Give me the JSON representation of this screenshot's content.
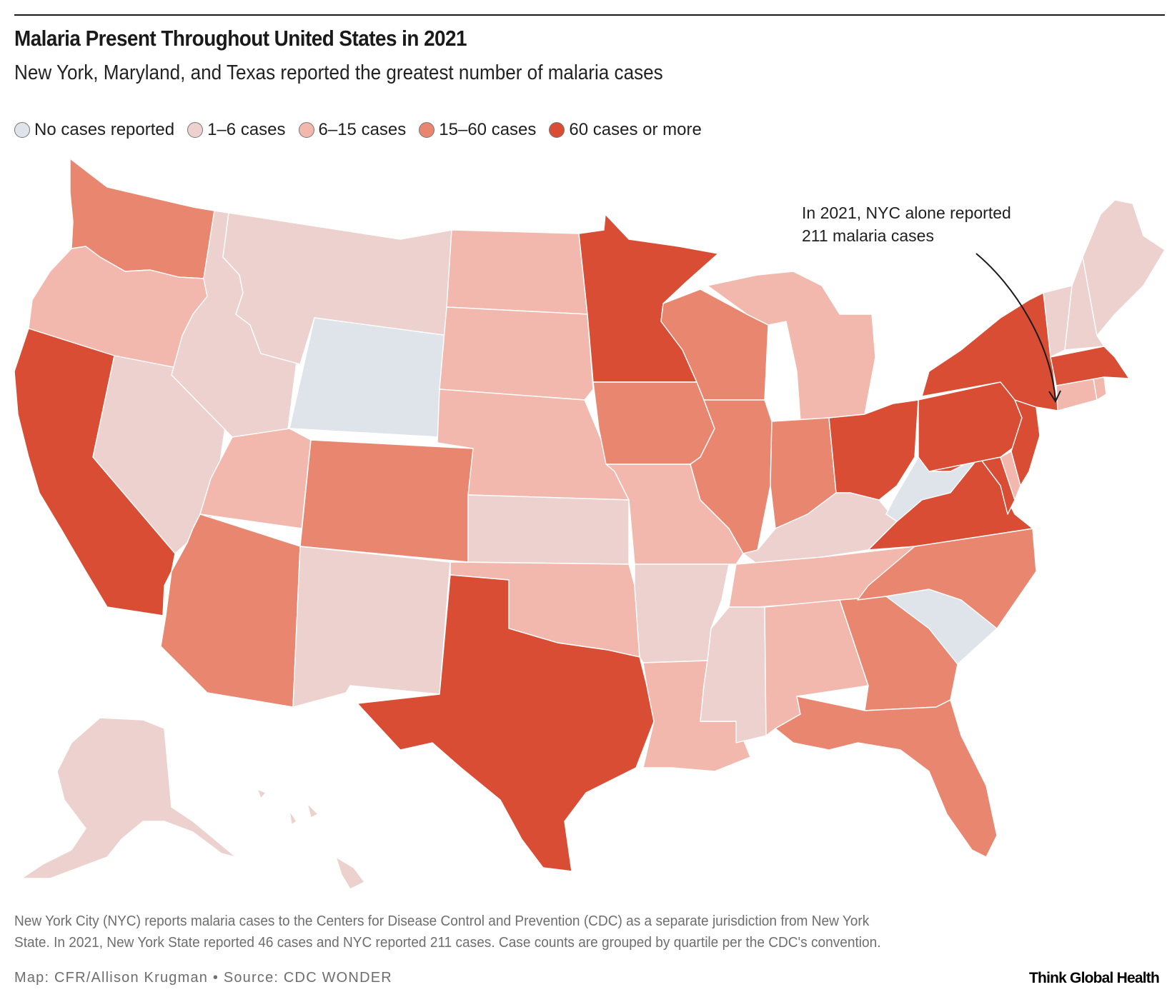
{
  "header": {
    "title": "Malaria Present Throughout United States in 2021",
    "subtitle": "New York, Maryland, and Texas reported the greatest number of malaria cases"
  },
  "legend": [
    {
      "key": "none",
      "label": "No cases reported",
      "color": "#dfe4ea"
    },
    {
      "key": "c1",
      "label": "1–6 cases",
      "color": "#ecd1ce"
    },
    {
      "key": "c2",
      "label": "6–15 cases",
      "color": "#f2b8ad"
    },
    {
      "key": "c3",
      "label": "15–60 cases",
      "color": "#e98670"
    },
    {
      "key": "c4",
      "label": "60 cases or more",
      "color": "#d84d33"
    }
  ],
  "annotation": {
    "line1": "In 2021, NYC alone reported",
    "line2": "211 malaria cases"
  },
  "chart_data": {
    "type": "choropleth",
    "title": "Malaria Present Throughout United States in 2021",
    "subtitle": "New York, Maryland, and Texas reported the greatest number of malaria cases",
    "legend_placement": "top-left",
    "categories": [
      "No cases reported",
      "1–6 cases",
      "6–15 cases",
      "15–60 cases",
      "60 cases or more"
    ],
    "states": {
      "WA": "15–60 cases",
      "OR": "6–15 cases",
      "CA": "60 cases or more",
      "NV": "1–6 cases",
      "ID": "1–6 cases",
      "MT": "1–6 cases",
      "WY": "No cases reported",
      "UT": "6–15 cases",
      "AZ": "15–60 cases",
      "CO": "15–60 cases",
      "NM": "1–6 cases",
      "ND": "6–15 cases",
      "SD": "6–15 cases",
      "NE": "6–15 cases",
      "KS": "1–6 cases",
      "OK": "6–15 cases",
      "TX": "60 cases or more",
      "MN": "60 cases or more",
      "IA": "15–60 cases",
      "MO": "6–15 cases",
      "AR": "1–6 cases",
      "LA": "6–15 cases",
      "WI": "15–60 cases",
      "IL": "15–60 cases",
      "MI": "6–15 cases",
      "IN": "15–60 cases",
      "OH": "60 cases or more",
      "KY": "1–6 cases",
      "TN": "6–15 cases",
      "MS": "1–6 cases",
      "AL": "6–15 cases",
      "GA": "15–60 cases",
      "FL": "15–60 cases",
      "SC": "No cases reported",
      "NC": "15–60 cases",
      "VA": "60 cases or more",
      "WV": "No cases reported",
      "MD": "60 cases or more",
      "DE": "6–15 cases",
      "PA": "60 cases or more",
      "NJ": "60 cases or more",
      "NY": "60 cases or more",
      "CT": "6–15 cases",
      "RI": "6–15 cases",
      "MA": "60 cases or more",
      "VT": "1–6 cases",
      "NH": "1–6 cases",
      "ME": "1–6 cases",
      "AK": "1–6 cases",
      "HI": "1–6 cases"
    },
    "annotations": [
      "In 2021, NYC alone reported 211 malaria cases"
    ]
  },
  "footnote": {
    "line1": "New York City (NYC) reports malaria cases to the Centers for Disease Control and Prevention (CDC) as a separate jurisdiction from New York",
    "line2": "State. In 2021, New York State reported 46 cases and NYC reported 211 cases. Case counts are grouped by quartile per the CDC's convention."
  },
  "credit": "Map: CFR/Allison Krugman • Source: CDC WONDER",
  "brand": "Think Global Health"
}
